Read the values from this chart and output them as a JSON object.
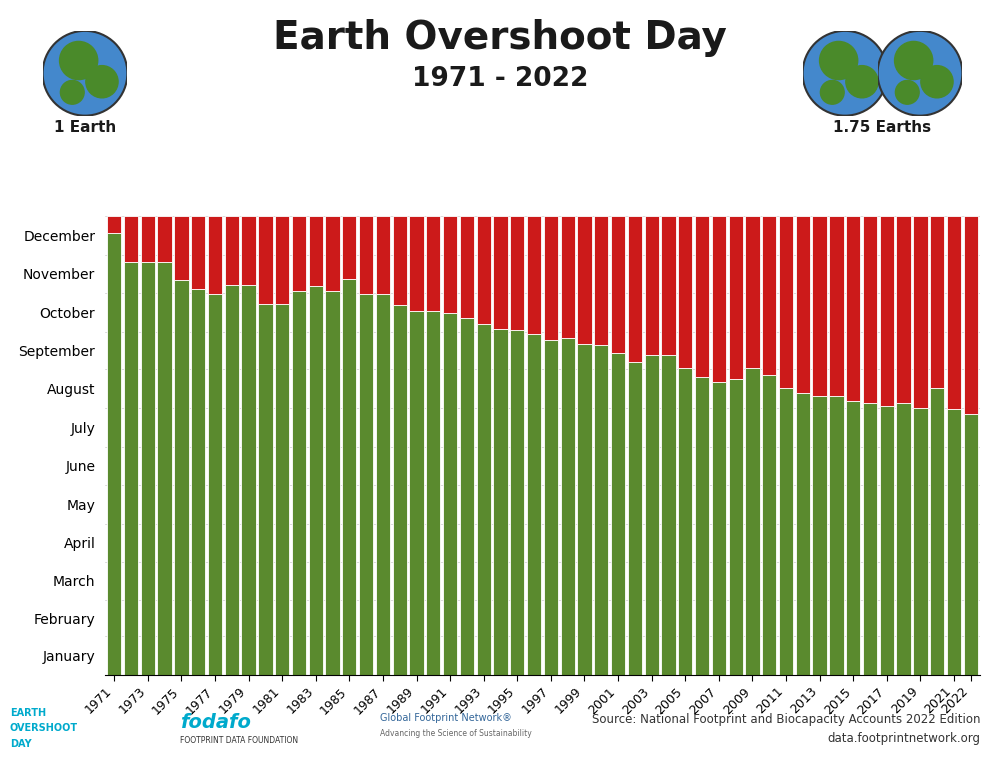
{
  "title": "Earth Overshoot Day",
  "subtitle": "1971 - 2022",
  "left_label": "1 Earth",
  "right_label": "1.75 Earths",
  "green_color": "#5a8a2e",
  "red_color": "#cc1a1a",
  "bar_edge_color": "#ffffff",
  "background_color": "#ffffff",
  "years": [
    1971,
    1972,
    1973,
    1974,
    1975,
    1976,
    1977,
    1978,
    1979,
    1980,
    1981,
    1982,
    1983,
    1984,
    1985,
    1986,
    1987,
    1988,
    1989,
    1990,
    1991,
    1992,
    1993,
    1994,
    1995,
    1996,
    1997,
    1998,
    1999,
    2000,
    2001,
    2002,
    2003,
    2004,
    2005,
    2006,
    2007,
    2008,
    2009,
    2010,
    2011,
    2012,
    2013,
    2014,
    2015,
    2016,
    2017,
    2018,
    2019,
    2020,
    2021,
    2022
  ],
  "overshoot_days": [
    351,
    328,
    328,
    328,
    314,
    307,
    303,
    310,
    310,
    295,
    295,
    305,
    309,
    305,
    315,
    303,
    303,
    294,
    289,
    289,
    288,
    284,
    279,
    275,
    274,
    271,
    266,
    268,
    263,
    262,
    256,
    249,
    254,
    254,
    244,
    237,
    233,
    235,
    244,
    238,
    228,
    224,
    222,
    222,
    218,
    216,
    214,
    216,
    212,
    228,
    211,
    207
  ],
  "total_days": 365,
  "months": [
    "January",
    "February",
    "March",
    "April",
    "May",
    "June",
    "July",
    "August",
    "September",
    "October",
    "November",
    "December"
  ],
  "month_days": [
    31,
    28,
    31,
    30,
    31,
    30,
    31,
    31,
    30,
    31,
    30,
    31
  ],
  "source_text": "Source: National Footprint and Biocapacity Accounts 2022 Edition\ndata.footprintnetwork.org"
}
